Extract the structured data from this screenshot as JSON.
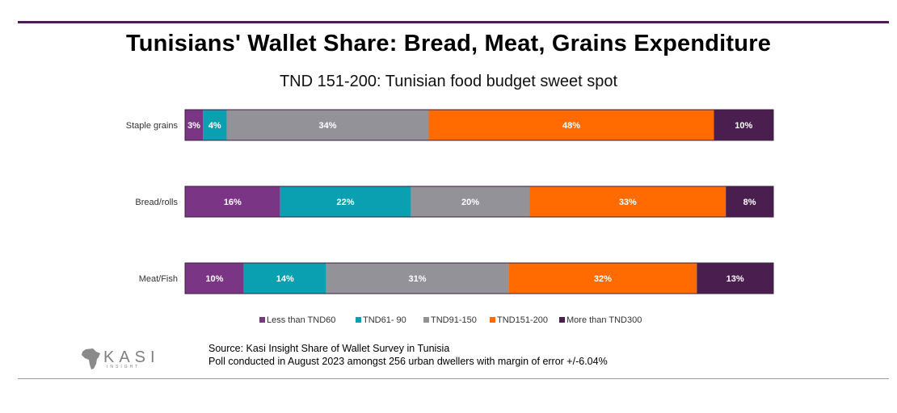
{
  "title": "Tunisians' Wallet Share: Bread, Meat, Grains Expenditure",
  "subtitle": "TND 151-200: Tunisian food budget sweet spot",
  "source_lines": [
    "Source: Kasi Insight Share of Wallet Survey in Tunisia",
    "Poll conducted in August 2023 amongst 256 urban dwellers with margin of error +/-6.04%"
  ],
  "logo": {
    "text": "KASI",
    "sub": "INSIGHT"
  },
  "chart_data": {
    "type": "bar",
    "orientation": "horizontal",
    "stacked": true,
    "normalized": true,
    "categories": [
      "Staple grains",
      "Bread/rolls",
      "Meat/Fish"
    ],
    "series": [
      {
        "name": "Less than TND60",
        "color": "#7b3585",
        "values": [
          3,
          16,
          10
        ],
        "labels": [
          "3%",
          "16%",
          "10%"
        ]
      },
      {
        "name": "TND61- 90",
        "color": "#0aa0b2",
        "values": [
          4,
          22,
          14
        ],
        "labels": [
          "4%",
          "22%",
          "14%"
        ]
      },
      {
        "name": "TND91-150",
        "color": "#939299",
        "values": [
          34,
          20,
          31
        ],
        "labels": [
          "34%",
          "20%",
          "31%"
        ]
      },
      {
        "name": "TND151-200",
        "color": "#ff6b00",
        "values": [
          48,
          33,
          32
        ],
        "labels": [
          "48%",
          "33%",
          "32%"
        ]
      },
      {
        "name": "More than TND300",
        "color": "#4a1e4f",
        "values": [
          10,
          8,
          13
        ],
        "labels": [
          "10%",
          "8%",
          "13%"
        ]
      }
    ],
    "legend_position": "bottom",
    "grid": false
  }
}
